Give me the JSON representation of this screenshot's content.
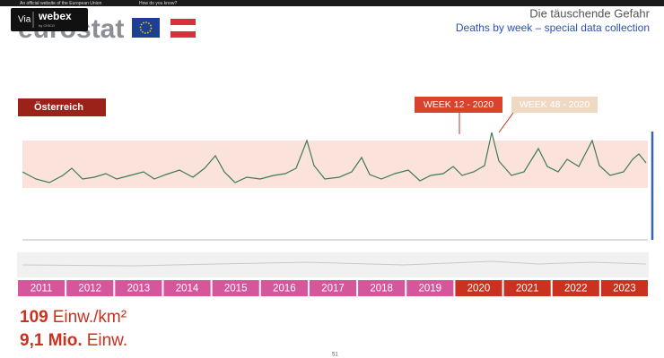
{
  "banner": {
    "text": "An official website of the European Union",
    "link": "How do you know?"
  },
  "webex": {
    "via": "Via",
    "brand": "webex",
    "by": "by CISCO"
  },
  "logo": "eurostat",
  "header": {
    "title": "Die täuschende Gefahr",
    "subtitle": "Deaths by week – special data collection"
  },
  "panel": {
    "country": "Österreich",
    "marker_1": "WEEK 12 - 2020",
    "marker_2": "WEEK 48 - 2020"
  },
  "years": [
    "2011",
    "2012",
    "2013",
    "2014",
    "2015",
    "2016",
    "2017",
    "2018",
    "2019",
    "2020",
    "2021",
    "2022",
    "2023"
  ],
  "stats": [
    {
      "value": "109",
      "unit": "Einw./km²"
    },
    {
      "value": "9,1 Mio.",
      "unit": "Einw."
    }
  ],
  "page_number": "51"
}
